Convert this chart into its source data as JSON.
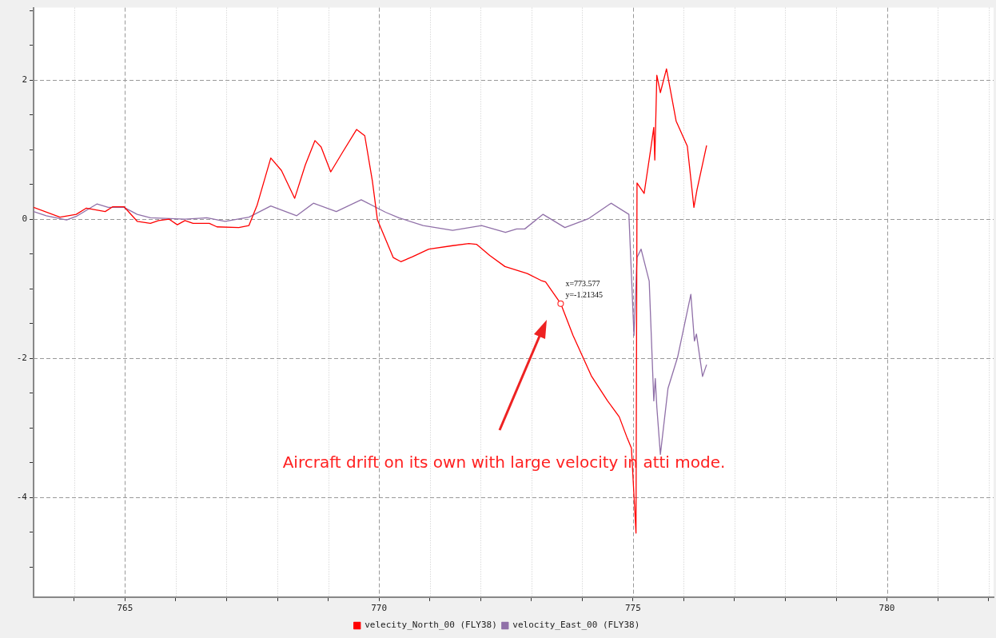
{
  "chart_data": {
    "type": "line",
    "xlim": [
      763.2,
      782.1
    ],
    "ylim": [
      -5.43,
      3.04
    ],
    "xticks": [
      {
        "value": 764,
        "label": null
      },
      765,
      {
        "value": 766,
        "label": null
      },
      {
        "value": 767,
        "label": null
      },
      {
        "value": 768,
        "label": null
      },
      {
        "value": 769,
        "label": null
      },
      770,
      {
        "value": 771,
        "label": null
      },
      {
        "value": 772,
        "label": null
      },
      {
        "value": 773,
        "label": null
      },
      {
        "value": 774,
        "label": null
      },
      775,
      {
        "value": 776,
        "label": null
      },
      {
        "value": 777,
        "label": null
      },
      {
        "value": 778,
        "label": null
      },
      {
        "value": 779,
        "label": null
      },
      780,
      {
        "value": 781,
        "label": null
      },
      {
        "value": 782,
        "label": null
      }
    ],
    "yticks": [
      {
        "value": -5,
        "label": null
      },
      {
        "value": -4.5,
        "label": null
      },
      -4,
      {
        "value": -3.5,
        "label": null
      },
      {
        "value": -3,
        "label": null
      },
      {
        "value": -2.5,
        "label": null
      },
      -2,
      {
        "value": -1.5,
        "label": null
      },
      {
        "value": -1,
        "label": null
      },
      {
        "value": -0.5,
        "label": null
      },
      0,
      {
        "value": 0.5,
        "label": null
      },
      {
        "value": 1,
        "label": null
      },
      {
        "value": 1.5,
        "label": null
      },
      2,
      {
        "value": 2.5,
        "label": null
      },
      {
        "value": 3,
        "label": null
      }
    ],
    "grid": true,
    "legend": "bottom",
    "marker": "none",
    "line_style": "solid",
    "series": [
      {
        "name": "velecity_North_00 (FLY38)",
        "color": "#ff0000",
        "x": [
          763.2,
          763.72,
          764.04,
          764.24,
          764.61,
          764.76,
          764.98,
          765.24,
          765.5,
          765.66,
          765.87,
          766.03,
          766.18,
          766.34,
          766.66,
          766.81,
          767.24,
          767.44,
          767.6,
          767.87,
          768.08,
          768.34,
          768.55,
          768.74,
          768.86,
          769.05,
          769.29,
          769.56,
          769.72,
          769.87,
          769.97,
          770.28,
          770.43,
          770.66,
          770.98,
          771.45,
          771.77,
          771.92,
          772.18,
          772.48,
          772.92,
          773.19,
          773.28,
          773.577,
          773.82,
          774.18,
          774.5,
          774.73,
          774.89,
          774.97,
          775.06,
          775.08,
          775.22,
          775.35,
          775.41,
          775.43,
          775.47,
          775.54,
          775.66,
          775.85,
          776.07,
          776.2,
          776.26,
          776.45
        ],
        "values": [
          0.17,
          0.03,
          0.07,
          0.16,
          0.11,
          0.18,
          0.18,
          -0.03,
          -0.06,
          -0.02,
          0,
          -0.08,
          -0.02,
          -0.06,
          -0.06,
          -0.11,
          -0.12,
          -0.09,
          0.2,
          0.88,
          0.7,
          0.3,
          0.78,
          1.13,
          1.04,
          0.68,
          0.97,
          1.29,
          1.2,
          0.55,
          -0.01,
          -0.55,
          -0.61,
          -0.54,
          -0.43,
          -0.38,
          -0.35,
          -0.36,
          -0.52,
          -0.68,
          -0.78,
          -0.88,
          -0.9,
          -1.21,
          -1.67,
          -2.25,
          -2.61,
          -2.84,
          -3.15,
          -3.29,
          -4.51,
          0.52,
          0.37,
          1.01,
          1.32,
          0.85,
          2.07,
          1.82,
          2.16,
          1.41,
          1.05,
          0.17,
          0.42,
          1.06
        ]
      },
      {
        "name": "velocity_East_00 (FLY38)",
        "color": "#9070a8",
        "x": [
          763.2,
          763.45,
          763.85,
          764.04,
          764.45,
          764.67,
          764.98,
          765.24,
          765.5,
          766.18,
          766.61,
          766.97,
          767.44,
          767.87,
          768.38,
          768.71,
          769.16,
          769.65,
          769.97,
          770.13,
          770.39,
          770.87,
          771.45,
          772.02,
          772.49,
          772.71,
          772.87,
          773.23,
          773.66,
          774.13,
          774.57,
          774.92,
          775.02,
          775.08,
          775.16,
          775.32,
          775.41,
          775.44,
          775.47,
          775.54,
          775.69,
          775.88,
          776.14,
          776.21,
          776.25,
          776.37,
          776.45
        ],
        "values": [
          0.11,
          0.05,
          -0.01,
          0.04,
          0.22,
          0.17,
          0.17,
          0.07,
          0.02,
          0,
          0.02,
          -0.03,
          0.03,
          0.19,
          0.05,
          0.23,
          0.11,
          0.28,
          0.16,
          0.1,
          0.02,
          -0.09,
          -0.16,
          -0.09,
          -0.19,
          -0.14,
          -0.14,
          0.07,
          -0.12,
          0.01,
          0.23,
          0.07,
          -1.67,
          -0.55,
          -0.43,
          -0.89,
          -2.61,
          -2.29,
          -2.7,
          -3.38,
          -2.43,
          -1.98,
          -1.08,
          -1.75,
          -1.65,
          -2.26,
          -2.09
        ]
      }
    ],
    "annotations": [
      {
        "text": "x=773.577\ny=-1.21345",
        "x": 773.577,
        "y": -1.21345
      },
      "Aircraft drift on its own with large velocity in atti mode."
    ]
  }
}
